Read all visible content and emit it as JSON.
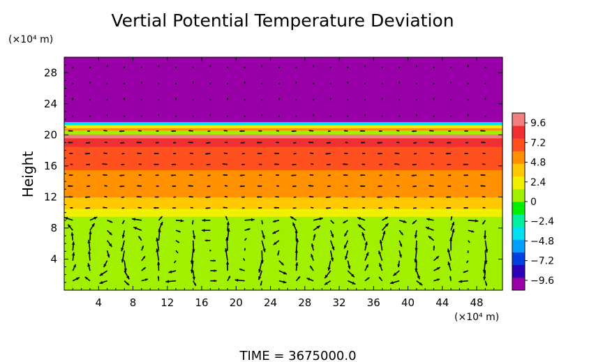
{
  "chart_data": {
    "type": "heatmap",
    "title": "Vertial Potential Temperature Deviation",
    "ylabel": "Height",
    "xunit": "(×10⁴ m)",
    "yunit": "(×10⁴ m)",
    "footer": "TIME  =  3675000.0",
    "xlim": [
      0,
      51
    ],
    "ylim": [
      0,
      30
    ],
    "xticks": [
      4,
      8,
      12,
      16,
      20,
      24,
      28,
      32,
      36,
      40,
      44,
      48
    ],
    "yticks": [
      4,
      8,
      12,
      16,
      20,
      24,
      28
    ],
    "colorbar": {
      "range": [
        -10.8,
        10.8
      ],
      "labels": [
        "9.6",
        "7.2",
        "4.8",
        "2.4",
        "0",
        "−2.4",
        "−4.8",
        "−7.2",
        "−9.6"
      ],
      "label_values": [
        9.6,
        7.2,
        4.8,
        2.4,
        0,
        -2.4,
        -4.8,
        -7.2,
        -9.6
      ],
      "colors": [
        "#9a00a8",
        "#2a00b8",
        "#0040e0",
        "#00a0ff",
        "#00e0f0",
        "#00f0a0",
        "#00f000",
        "#a0f000",
        "#f0f000",
        "#ffc800",
        "#ff9000",
        "#ff5020",
        "#f03030",
        "#f08080"
      ]
    },
    "bands": [
      {
        "y0": 0,
        "y1": 9.5,
        "value": 0.4
      },
      {
        "y0": 9.5,
        "y1": 10.5,
        "value": 1.6
      },
      {
        "y0": 10.5,
        "y1": 12,
        "value": 3.4
      },
      {
        "y0": 12,
        "y1": 14,
        "value": 4.8
      },
      {
        "y0": 14,
        "y1": 15.5,
        "value": 5.6
      },
      {
        "y0": 15.5,
        "y1": 17,
        "value": 6.8
      },
      {
        "y0": 17,
        "y1": 18.5,
        "value": 7.6
      },
      {
        "y0": 18.5,
        "y1": 19.6,
        "value": 8.4
      },
      {
        "y0": 19.6,
        "y1": 20.1,
        "value": 9.6
      },
      {
        "y0": 20.1,
        "y1": 20.6,
        "value": 0.5
      },
      {
        "y0": 20.6,
        "y1": 20.9,
        "value": 6.0
      },
      {
        "y0": 20.9,
        "y1": 21.3,
        "value": 2.2
      },
      {
        "y0": 21.3,
        "y1": 21.7,
        "value": -4.0
      },
      {
        "y0": 21.7,
        "y1": 30,
        "value": -9.8
      }
    ],
    "arrow_columns": [
      1,
      3,
      5,
      7,
      9,
      11,
      13,
      15,
      17,
      19,
      21,
      23,
      25,
      27,
      29,
      31,
      33,
      35,
      37,
      39,
      41,
      43,
      45,
      47,
      49
    ],
    "arrow_rows": [
      1.2,
      2.5,
      3.8,
      5.1,
      6.4,
      7.7,
      9.0,
      10.6,
      12.0,
      13.4,
      14.8,
      16.2,
      17.6,
      19.0,
      20.5,
      22.4,
      24.5,
      26.6,
      28.7
    ],
    "cells": [
      {
        "x0": 0,
        "x1": 8.5
      },
      {
        "x0": 8.5,
        "x1": 17
      },
      {
        "x0": 17,
        "x1": 25.5
      },
      {
        "x0": 25.5,
        "x1": 34
      },
      {
        "x0": 34,
        "x1": 42.5
      },
      {
        "x0": 42.5,
        "x1": 51
      }
    ]
  }
}
